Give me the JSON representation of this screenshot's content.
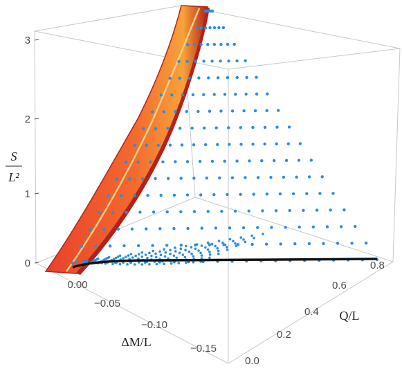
{
  "chart_data": {
    "type": "scatter",
    "kind": "3d-surface-and-points",
    "title": "",
    "axes": {
      "x": {
        "label": "ΔM/L",
        "ticks": [
          "0.00",
          "−0.05",
          "−0.10",
          "−0.15"
        ],
        "range": [
          -0.18,
          0.02
        ]
      },
      "y": {
        "label": "Q/L",
        "ticks": [
          "0.0",
          "0.2",
          "0.4",
          "0.6",
          "0.8"
        ],
        "range": [
          0.0,
          0.82
        ]
      },
      "z": {
        "label_num": "S",
        "label_den": "L²",
        "ticks": [
          "0",
          "1",
          "2",
          "3"
        ],
        "range": [
          0,
          3.3
        ]
      }
    },
    "layers": [
      {
        "kind": "surface",
        "color_light": "#f7b03a",
        "color_mid": "#f05a2a",
        "color_dark": "#b3221a"
      },
      {
        "kind": "points",
        "color": "#2a8de0",
        "rows": 16,
        "entropy_step": 0.2
      },
      {
        "kind": "boundary-curve",
        "color": "#111111"
      },
      {
        "kind": "highlight-curve",
        "color": "#ffd98a"
      }
    ],
    "grid": false,
    "box": true
  }
}
